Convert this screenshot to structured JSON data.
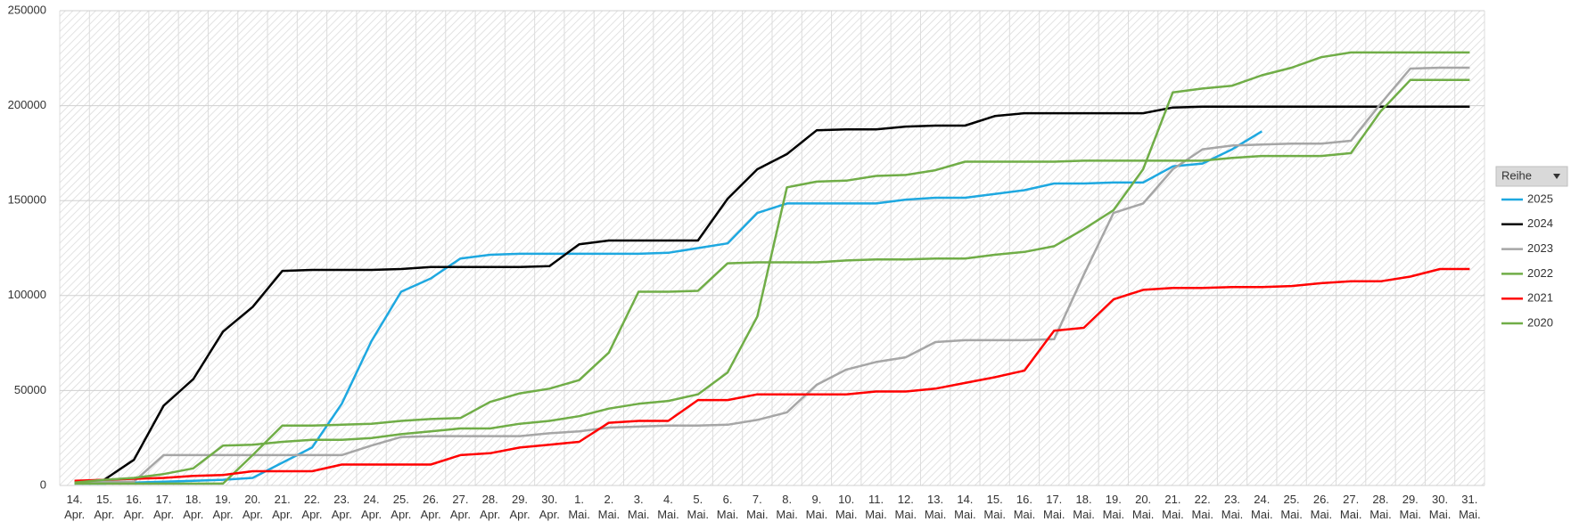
{
  "chart_data": {
    "type": "line",
    "categories": [
      "14. Apr.",
      "15. Apr.",
      "16. Apr.",
      "17. Apr.",
      "18. Apr.",
      "19. Apr.",
      "20. Apr.",
      "21. Apr.",
      "22. Apr.",
      "23. Apr.",
      "24. Apr.",
      "25. Apr.",
      "26. Apr.",
      "27. Apr.",
      "28. Apr.",
      "29. Apr.",
      "30. Apr.",
      "1. Mai.",
      "2. Mai.",
      "3. Mai.",
      "4. Mai.",
      "5. Mai.",
      "6. Mai.",
      "7. Mai.",
      "8. Mai.",
      "9. Mai.",
      "10. Mai.",
      "11. Mai.",
      "12. Mai.",
      "13. Mai.",
      "14. Mai.",
      "15. Mai.",
      "16. Mai.",
      "17. Mai.",
      "18. Mai.",
      "19. Mai.",
      "20. Mai.",
      "21. Mai.",
      "22. Mai.",
      "23. Mai.",
      "24. Mai.",
      "25. Mai.",
      "26. Mai.",
      "27. Mai.",
      "28. Mai.",
      "29. Mai.",
      "30. Mai.",
      "31. Mai."
    ],
    "ylim": [
      0,
      250000
    ],
    "yticks": [
      0,
      50000,
      100000,
      150000,
      200000,
      250000
    ],
    "grid": true,
    "legend_title": "Reihe",
    "legend": "right",
    "series": [
      {
        "name": "2025",
        "color": "#1ea8e0",
        "values": [
          1000,
          1000,
          1500,
          2000,
          2500,
          3000,
          4000,
          12000,
          20000,
          43000,
          76000,
          102000,
          109000,
          119500,
          121500,
          122000,
          122000,
          122000,
          122000,
          122000,
          122500,
          125000,
          127500,
          143500,
          148500,
          148500,
          148500,
          148500,
          150500,
          151500,
          151500,
          153500,
          155500,
          159000,
          159000,
          159500,
          159500,
          168000,
          169500,
          177000,
          186500,
          null,
          null,
          null,
          null,
          null,
          null,
          null
        ]
      },
      {
        "name": "2024",
        "color": "#000000",
        "values": [
          2000,
          3000,
          13500,
          42000,
          56000,
          81000,
          94000,
          113000,
          113500,
          113500,
          113500,
          114000,
          115000,
          115000,
          115000,
          115000,
          115500,
          127000,
          129000,
          129000,
          129000,
          129000,
          151000,
          166500,
          174500,
          187000,
          187500,
          187500,
          189000,
          189500,
          189500,
          194500,
          196000,
          196000,
          196000,
          196000,
          196000,
          199000,
          199500,
          199500,
          199500,
          199500,
          199500,
          199500,
          199500,
          199500,
          199500,
          199500
        ]
      },
      {
        "name": "2023",
        "color": "#a6a6a6",
        "values": [
          2000,
          2000,
          2000,
          16000,
          16000,
          16000,
          16000,
          16000,
          16000,
          16000,
          21000,
          25500,
          26000,
          26000,
          26000,
          26000,
          27500,
          28500,
          30500,
          31000,
          31500,
          31500,
          32000,
          34500,
          38500,
          53000,
          61000,
          65000,
          67500,
          75500,
          76500,
          76500,
          76500,
          77000,
          111000,
          143500,
          148500,
          166500,
          177000,
          179000,
          179500,
          180000,
          180000,
          181500,
          201000,
          219500,
          220000,
          220000
        ]
      },
      {
        "name": "2022",
        "color": "#70ad47",
        "values": [
          1000,
          1000,
          1000,
          1000,
          1000,
          1000,
          16000,
          31500,
          31500,
          32000,
          32500,
          34000,
          35000,
          35500,
          44000,
          48500,
          51000,
          55500,
          70000,
          102000,
          102000,
          102500,
          117000,
          117500,
          117500,
          117500,
          118500,
          119000,
          119000,
          119500,
          119500,
          121500,
          123000,
          126000,
          135000,
          145000,
          166500,
          207000,
          209000,
          210500,
          216000,
          220000,
          225500,
          228000,
          228000,
          228000,
          228000,
          228000
        ]
      },
      {
        "name": "2021",
        "color": "#ff0000",
        "values": [
          2500,
          3000,
          3500,
          4000,
          5000,
          5500,
          7500,
          7500,
          7500,
          11000,
          11000,
          11000,
          11000,
          16000,
          17000,
          20000,
          21500,
          23000,
          33000,
          34000,
          34000,
          45000,
          45000,
          48000,
          48000,
          48000,
          48000,
          49500,
          49500,
          51000,
          54000,
          57000,
          60500,
          81500,
          83000,
          98000,
          103000,
          104000,
          104000,
          104500,
          104500,
          105000,
          106500,
          107500,
          107500,
          110000,
          114000,
          114000
        ]
      },
      {
        "name": "2020",
        "color": "#70ad47",
        "values": [
          1500,
          3000,
          4000,
          6000,
          9000,
          21000,
          21500,
          23000,
          24000,
          24000,
          25000,
          27000,
          28500,
          30000,
          30000,
          32500,
          34000,
          36500,
          40500,
          43000,
          44500,
          48000,
          59500,
          89000,
          157000,
          160000,
          160500,
          163000,
          163500,
          166000,
          170500,
          170500,
          170500,
          170500,
          171000,
          171000,
          171000,
          171000,
          171000,
          172500,
          173500,
          173500,
          173500,
          175000,
          197000,
          213500,
          213500,
          213500
        ]
      }
    ]
  }
}
